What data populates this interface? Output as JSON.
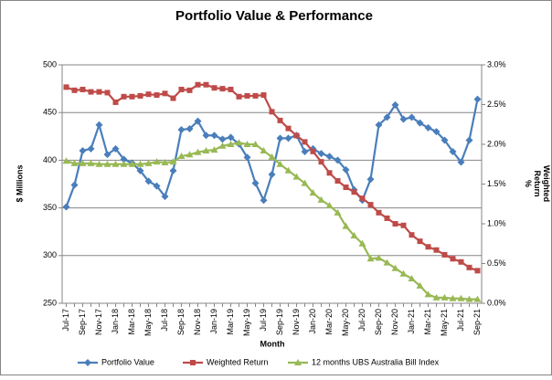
{
  "chart_data": {
    "type": "line",
    "title": "Portfolio Value & Performance",
    "xlabel": "Month",
    "ylabel": "$ Millions",
    "y2label": "Weighted Return %",
    "categories": [
      "Jul-17",
      null,
      "Sep-17",
      null,
      "Nov-17",
      null,
      "Jan-18",
      null,
      "Mar-18",
      null,
      "May-18",
      null,
      "Jul-18",
      null,
      "Sep-18",
      null,
      "Nov-18",
      null,
      "Jan-19",
      null,
      "Mar-19",
      null,
      "May-19",
      null,
      "Jul-19",
      null,
      "Sep-19",
      null,
      "Nov-19",
      null,
      "Jan-20",
      null,
      "Mar-20",
      null,
      "May-20",
      null,
      "Jul-20",
      null,
      "Sep-20",
      null,
      "Nov-20",
      null,
      "Jan-21",
      null,
      "Mar-21",
      null,
      "May-21",
      null,
      "Jul-21",
      null,
      "Sep-21"
    ],
    "ylim": [
      250,
      500
    ],
    "yticks": [
      250,
      300,
      350,
      400,
      450,
      500
    ],
    "y2lim": [
      0,
      3
    ],
    "y2ticks": [
      {
        "value": 0,
        "label": "0.0%"
      },
      {
        "value": 0.5,
        "label": "0.5%"
      },
      {
        "value": 1,
        "label": "1.0%"
      },
      {
        "value": 1.5,
        "label": "1.5%"
      },
      {
        "value": 2,
        "label": "2.0%"
      },
      {
        "value": 2.5,
        "label": "2.5%"
      },
      {
        "value": 3,
        "label": "3.0%"
      }
    ],
    "grid": true,
    "legend": "bottom",
    "series": [
      {
        "name": "Portfolio Value",
        "color": "#4a7ebb",
        "marker": "diamond",
        "axis": "y",
        "values": [
          351,
          374,
          410,
          412,
          437,
          406,
          412,
          401,
          397,
          389,
          378,
          373,
          362,
          389,
          432,
          433,
          441,
          426,
          426,
          422,
          424,
          417,
          403,
          376,
          358,
          385,
          423,
          423,
          426,
          409,
          412,
          407,
          404,
          400,
          390,
          369,
          358,
          380,
          437,
          445,
          458,
          443,
          445,
          439,
          434,
          430,
          421,
          409,
          398,
          421,
          464
        ]
      },
      {
        "name": "Weighted Return",
        "color": "#be4b48",
        "marker": "square",
        "axis": "y2",
        "values": [
          2.72,
          2.68,
          2.69,
          2.66,
          2.66,
          2.65,
          2.53,
          2.6,
          2.6,
          2.61,
          2.63,
          2.62,
          2.64,
          2.58,
          2.69,
          2.68,
          2.75,
          2.75,
          2.71,
          2.7,
          2.69,
          2.6,
          2.61,
          2.61,
          2.62,
          2.41,
          2.3,
          2.2,
          2.11,
          2.03,
          1.91,
          1.78,
          1.64,
          1.54,
          1.46,
          1.4,
          1.32,
          1.24,
          1.14,
          1.07,
          1.0,
          0.98,
          0.86,
          0.78,
          0.71,
          0.67,
          0.61,
          0.56,
          0.52,
          0.45,
          0.41
        ]
      },
      {
        "name": "12 months UBS Australia Bill Index",
        "color": "#98b954",
        "marker": "triangle",
        "axis": "y2",
        "values": [
          1.79,
          1.76,
          1.76,
          1.76,
          1.75,
          1.75,
          1.75,
          1.75,
          1.75,
          1.75,
          1.76,
          1.78,
          1.77,
          1.78,
          1.85,
          1.87,
          1.9,
          1.92,
          1.93,
          1.98,
          2.0,
          2.02,
          2.0,
          2.0,
          1.92,
          1.84,
          1.75,
          1.67,
          1.59,
          1.51,
          1.39,
          1.3,
          1.23,
          1.14,
          0.97,
          0.85,
          0.75,
          0.56,
          0.57,
          0.51,
          0.44,
          0.37,
          0.31,
          0.22,
          0.11,
          0.07,
          0.07,
          0.06,
          0.06,
          0.05,
          0.05
        ]
      }
    ]
  }
}
